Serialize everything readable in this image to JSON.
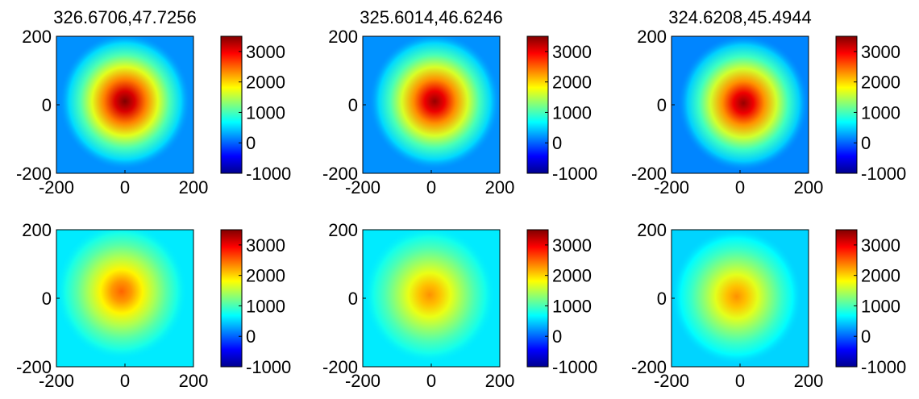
{
  "colormap": "jet",
  "chart_data": [
    {
      "type": "heatmap",
      "title": "326.6706,47.7256",
      "xlim": [
        -200,
        200
      ],
      "ylim": [
        -200,
        200
      ],
      "x_ticks": [
        "-200",
        "0",
        "200"
      ],
      "y_ticks": [
        "-200",
        "0",
        "200"
      ],
      "clim": [
        -1000,
        3500
      ],
      "colorbar_ticks": [
        -1000,
        0,
        1000,
        2000,
        3000
      ],
      "peak": {
        "x": 0,
        "y": 10,
        "value": 3500
      },
      "background_value": 200
    },
    {
      "type": "heatmap",
      "title": "325.6014,46.6246",
      "xlim": [
        -200,
        200
      ],
      "ylim": [
        -200,
        200
      ],
      "x_ticks": [
        "-200",
        "0",
        "200"
      ],
      "y_ticks": [
        "-200",
        "0",
        "200"
      ],
      "clim": [
        -1000,
        3500
      ],
      "colorbar_ticks": [
        -1000,
        0,
        1000,
        2000,
        3000
      ],
      "peak": {
        "x": 10,
        "y": 10,
        "value": 3400
      },
      "background_value": 200
    },
    {
      "type": "heatmap",
      "title": "324.6208,45.4944",
      "xlim": [
        -200,
        200
      ],
      "ylim": [
        -200,
        200
      ],
      "x_ticks": [
        "-200",
        "0",
        "200"
      ],
      "y_ticks": [
        "-200",
        "0",
        "200"
      ],
      "clim": [
        -1000,
        3500
      ],
      "colorbar_ticks": [
        -1000,
        0,
        1000,
        2000,
        3000
      ],
      "peak": {
        "x": 10,
        "y": 5,
        "value": 3400
      },
      "background_value": 150
    },
    {
      "type": "heatmap",
      "title": "",
      "xlim": [
        -200,
        200
      ],
      "ylim": [
        -200,
        200
      ],
      "x_ticks": [
        "-200",
        "0",
        "200"
      ],
      "y_ticks": [
        "-200",
        "0",
        "200"
      ],
      "clim": [
        -1000,
        3500
      ],
      "colorbar_ticks": [
        -1000,
        0,
        1000,
        2000,
        3000
      ],
      "peak": {
        "x": -10,
        "y": 20,
        "value": 2500
      },
      "background_value": 600
    },
    {
      "type": "heatmap",
      "title": "",
      "xlim": [
        -200,
        200
      ],
      "ylim": [
        -200,
        200
      ],
      "x_ticks": [
        "-200",
        "0",
        "200"
      ],
      "y_ticks": [
        "-200",
        "0",
        "200"
      ],
      "clim": [
        -1000,
        3500
      ],
      "colorbar_ticks": [
        -1000,
        0,
        1000,
        2000,
        3000
      ],
      "peak": {
        "x": -5,
        "y": 10,
        "value": 2300
      },
      "background_value": 600
    },
    {
      "type": "heatmap",
      "title": "",
      "xlim": [
        -200,
        200
      ],
      "ylim": [
        -200,
        200
      ],
      "x_ticks": [
        "-200",
        "0",
        "200"
      ],
      "y_ticks": [
        "-200",
        "0",
        "200"
      ],
      "clim": [
        -1000,
        3500
      ],
      "colorbar_ticks": [
        -1000,
        0,
        1000,
        2000,
        3000
      ],
      "peak": {
        "x": -10,
        "y": 5,
        "value": 2300
      },
      "background_value": 500
    }
  ]
}
